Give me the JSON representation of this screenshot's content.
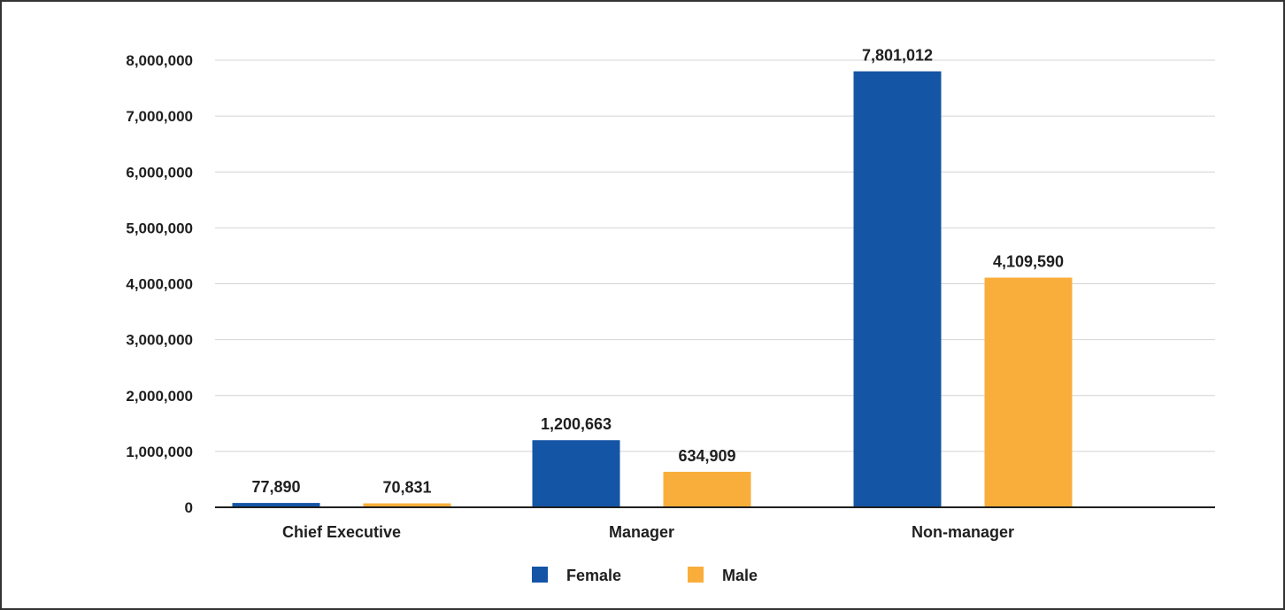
{
  "chart_data": {
    "type": "bar",
    "title": "",
    "xlabel": "",
    "ylabel": "",
    "categories": [
      "Chief Executive",
      "Manager",
      "Non-manager"
    ],
    "series": [
      {
        "name": "Female",
        "color": "#1555a5",
        "values": [
          77890,
          1200663,
          7801012
        ],
        "labels": [
          "77,890",
          "1,200,663",
          "7,801,012"
        ]
      },
      {
        "name": "Male",
        "color": "#f9ae3b",
        "values": [
          70831,
          634909,
          4109590
        ],
        "labels": [
          "70,831",
          "634,909",
          "4,109,590"
        ]
      }
    ],
    "ylim": [
      0,
      8000000
    ],
    "yticks": [
      0,
      1000000,
      2000000,
      3000000,
      4000000,
      5000000,
      6000000,
      7000000,
      8000000
    ],
    "ytick_labels": [
      "0",
      "1,000,000",
      "2,000,000",
      "3,000,000",
      "4,000,000",
      "5,000,000",
      "6,000,000",
      "7,000,000",
      "8,000,000"
    ],
    "grid": true,
    "legend_position": "bottom"
  }
}
